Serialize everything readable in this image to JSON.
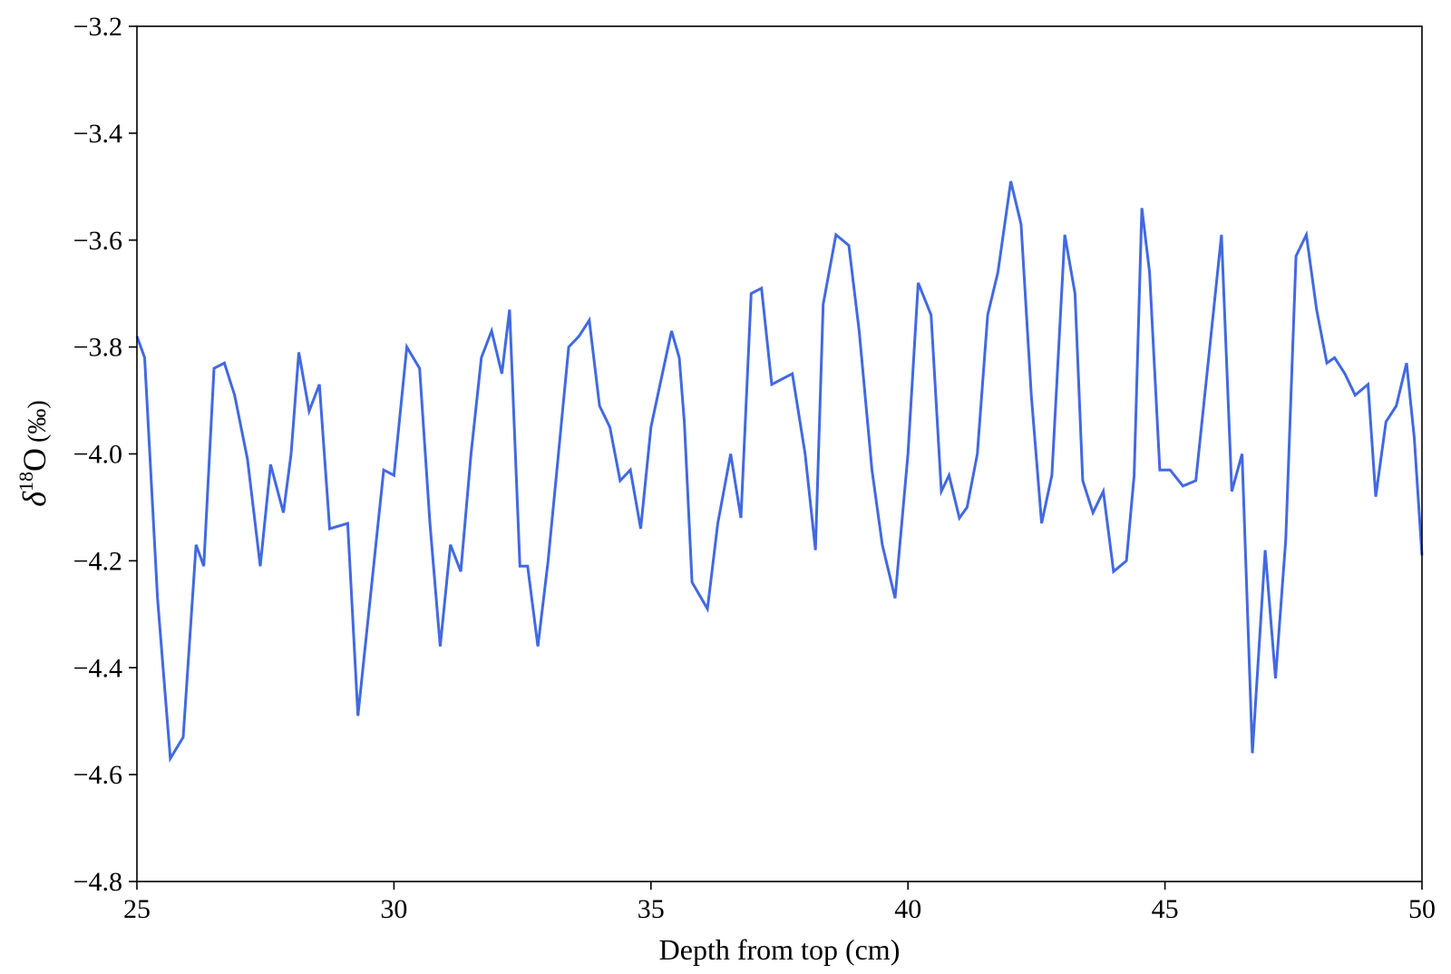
{
  "chart_data": {
    "type": "line",
    "xlabel": "Depth from top (cm)",
    "ylabel_symbol": "δ",
    "ylabel_superscript": "18",
    "ylabel_species": "O",
    "ylabel_unit": "(‰)",
    "xlim": [
      25,
      50
    ],
    "ylim": [
      -4.8,
      -3.2
    ],
    "xticks": [
      25,
      30,
      35,
      40,
      45,
      50
    ],
    "xtick_labels": [
      "25",
      "30",
      "35",
      "40",
      "45",
      "50"
    ],
    "yticks": [
      -4.8,
      -4.6,
      -4.4,
      -4.2,
      -4.0,
      -3.8,
      -3.6,
      -3.4,
      -3.2
    ],
    "ytick_labels": [
      "−4.8",
      "−4.6",
      "−4.4",
      "−4.2",
      "−4.0",
      "−3.8",
      "−3.6",
      "−3.4",
      "−3.2"
    ],
    "grid": false,
    "line_color": "#4169e1",
    "series": [
      {
        "x": [
          25.0,
          25.15,
          25.4,
          25.65,
          25.9,
          26.15,
          26.3,
          26.5,
          26.7,
          26.9,
          27.15,
          27.4,
          27.6,
          27.85,
          28.0,
          28.15,
          28.35,
          28.55,
          28.75,
          29.1,
          29.3,
          29.55,
          29.8,
          30.0,
          30.25,
          30.5,
          30.7,
          30.9,
          31.1,
          31.3,
          31.5,
          31.7,
          31.9,
          32.1,
          32.25,
          32.45,
          32.6,
          32.8,
          33.0,
          33.2,
          33.4,
          33.6,
          33.8,
          34.0,
          34.2,
          34.4,
          34.6,
          34.8,
          35.0,
          35.2,
          35.4,
          35.55,
          35.65,
          35.8,
          36.1,
          36.3,
          36.55,
          36.75,
          36.95,
          37.15,
          37.35,
          37.55,
          37.75,
          38.0,
          38.2,
          38.35,
          38.6,
          38.85,
          39.05,
          39.3,
          39.5,
          39.75,
          40.0,
          40.2,
          40.45,
          40.65,
          40.8,
          41.0,
          41.15,
          41.35,
          41.55,
          41.75,
          42.0,
          42.2,
          42.4,
          42.6,
          42.8,
          43.05,
          43.25,
          43.4,
          43.6,
          43.8,
          44.0,
          44.25,
          44.4,
          44.55,
          44.7,
          44.9,
          45.1,
          45.35,
          45.6,
          45.85,
          46.1,
          46.3,
          46.5,
          46.7,
          46.95,
          47.15,
          47.35,
          47.55,
          47.75,
          47.95,
          48.15,
          48.3,
          48.5,
          48.7,
          48.95,
          49.1,
          49.3,
          49.5,
          49.7,
          49.85,
          50.0
        ],
        "y": [
          -3.78,
          -3.82,
          -4.27,
          -4.57,
          -4.53,
          -4.17,
          -4.21,
          -3.84,
          -3.83,
          -3.89,
          -4.01,
          -4.21,
          -4.02,
          -4.11,
          -4.0,
          -3.81,
          -3.92,
          -3.87,
          -4.14,
          -4.13,
          -4.49,
          -4.26,
          -4.03,
          -4.04,
          -3.8,
          -3.84,
          -4.13,
          -4.36,
          -4.17,
          -4.22,
          -4.0,
          -3.82,
          -3.77,
          -3.85,
          -3.73,
          -4.21,
          -4.21,
          -4.36,
          -4.2,
          -4.0,
          -3.8,
          -3.78,
          -3.75,
          -3.91,
          -3.95,
          -4.05,
          -4.03,
          -4.14,
          -3.95,
          -3.86,
          -3.77,
          -3.82,
          -3.94,
          -4.24,
          -4.29,
          -4.13,
          -4.0,
          -4.12,
          -3.7,
          -3.69,
          -3.87,
          -3.86,
          -3.85,
          -4.0,
          -4.18,
          -3.72,
          -3.59,
          -3.61,
          -3.77,
          -4.03,
          -4.17,
          -4.27,
          -4.0,
          -3.68,
          -3.74,
          -4.07,
          -4.04,
          -4.12,
          -4.1,
          -4.0,
          -3.74,
          -3.66,
          -3.49,
          -3.57,
          -3.89,
          -4.13,
          -4.04,
          -3.59,
          -3.7,
          -4.05,
          -4.11,
          -4.07,
          -4.22,
          -4.2,
          -4.04,
          -3.54,
          -3.66,
          -4.03,
          -4.03,
          -4.06,
          -4.05,
          -3.82,
          -3.59,
          -4.07,
          -4.0,
          -4.56,
          -4.18,
          -4.42,
          -4.16,
          -3.63,
          -3.59,
          -3.73,
          -3.83,
          -3.82,
          -3.85,
          -3.89,
          -3.87,
          -4.08,
          -3.94,
          -3.91,
          -3.83,
          -3.97,
          -4.19
        ]
      }
    ]
  }
}
